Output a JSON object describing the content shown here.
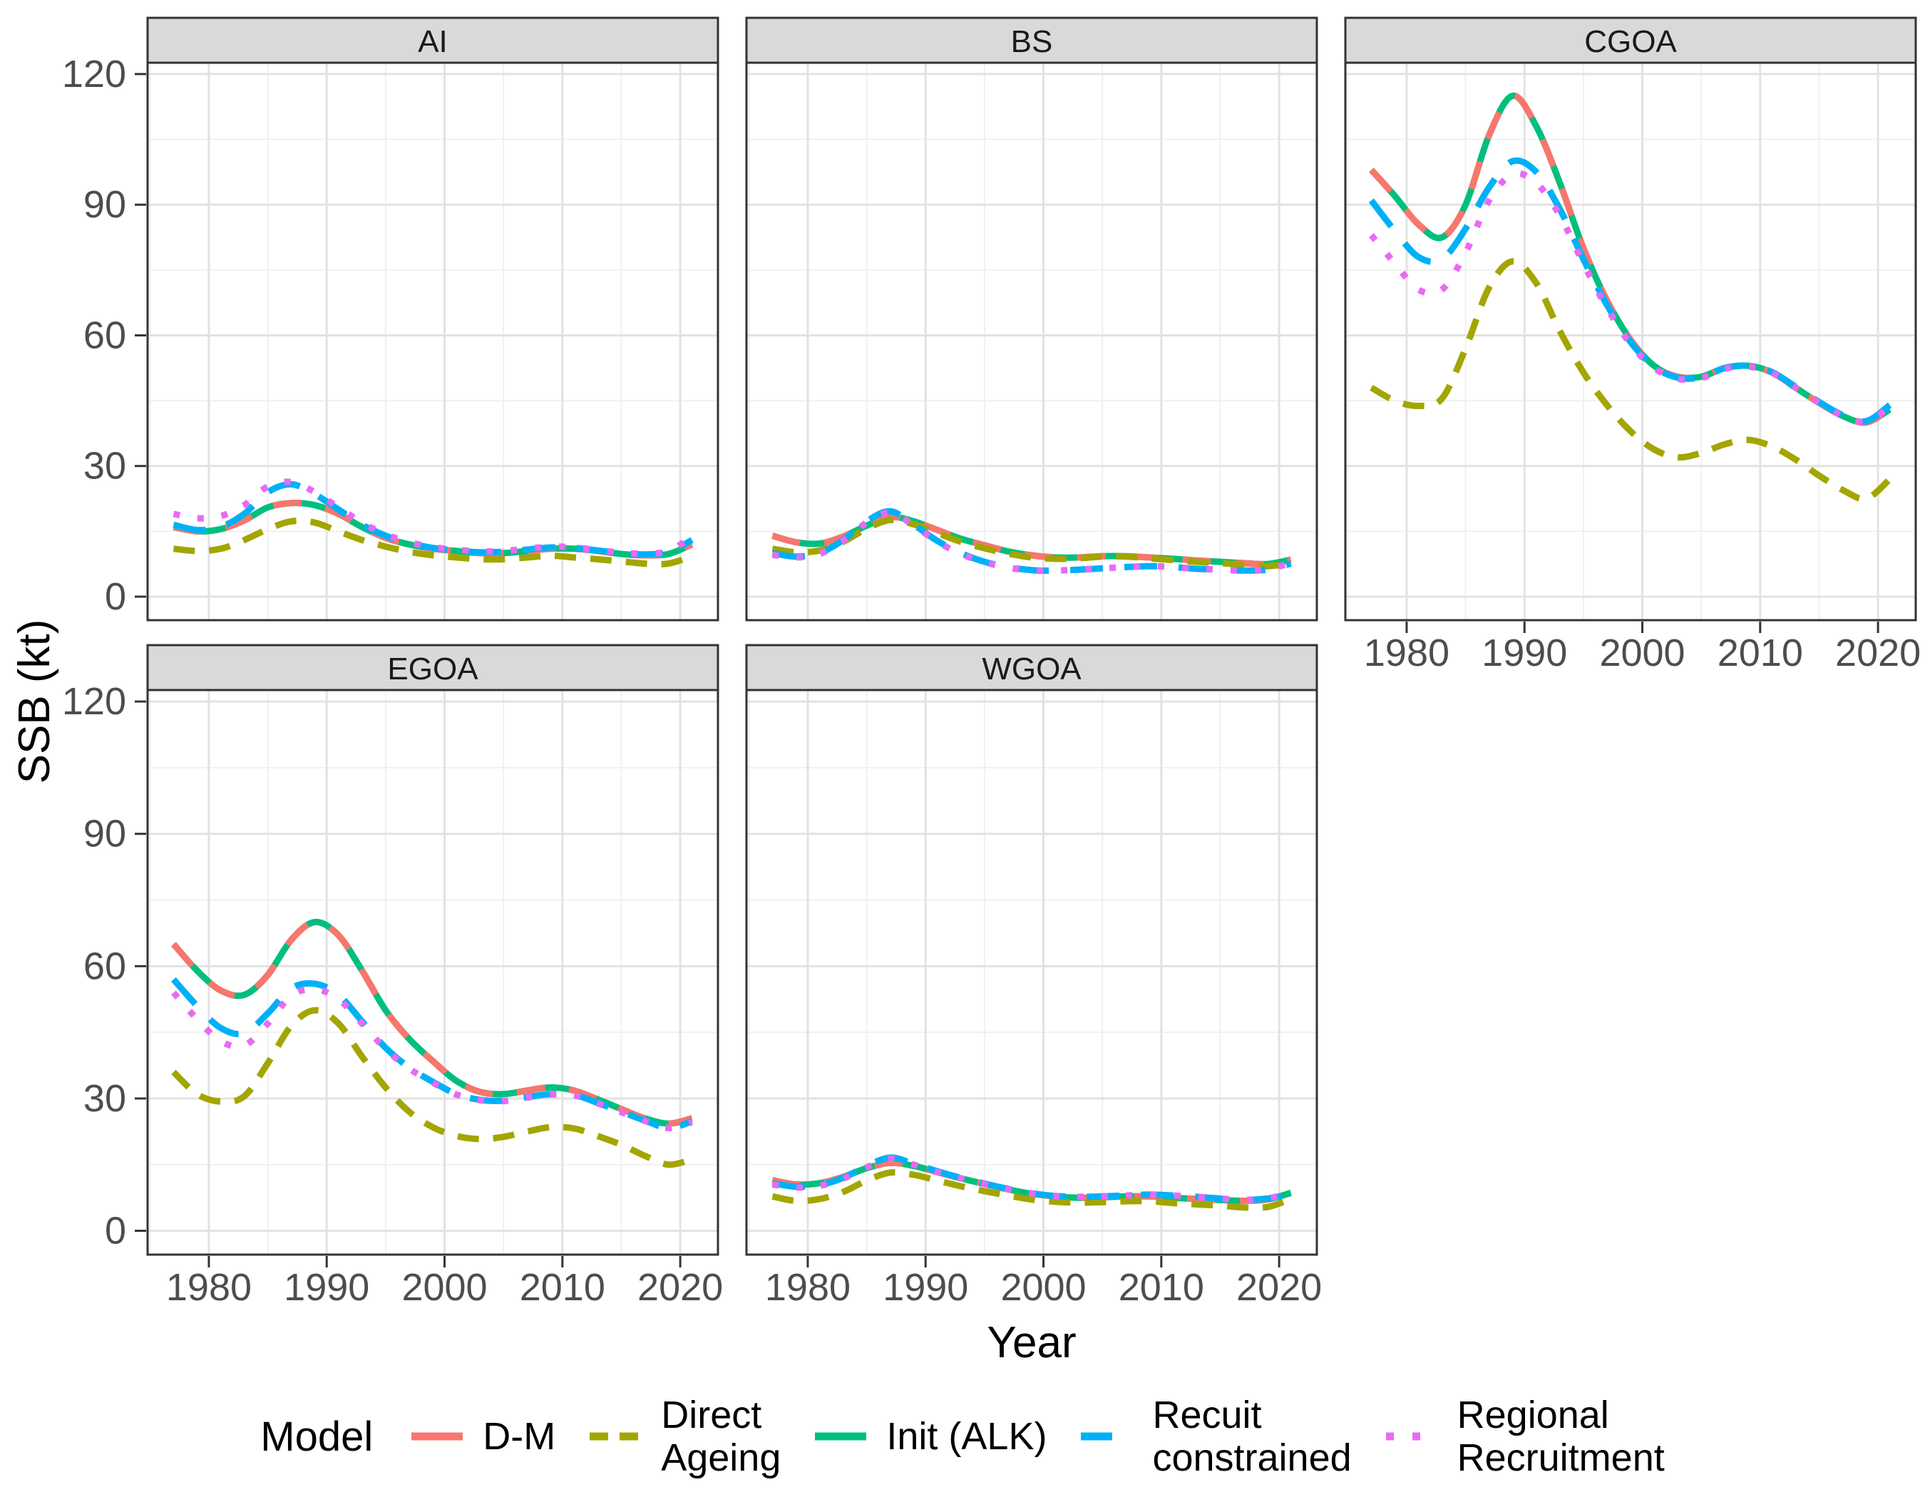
{
  "figure": {
    "y_axis_title": "SSB (kt)",
    "x_axis_title": "Year",
    "y_ticks": [
      "120",
      "90",
      "60",
      "30",
      "0"
    ],
    "x_ticks": [
      "1980",
      "1990",
      "2000",
      "2010",
      "2020"
    ]
  },
  "legend": {
    "title": "Model",
    "entries": [
      {
        "label": "D-M",
        "color": "#F8766D",
        "dash": "dm"
      },
      {
        "label": "Direct\nAgeing",
        "color": "#A3A500",
        "dash": "direct"
      },
      {
        "label": "Init (ALK)",
        "color": "#00BF7D",
        "dash": "solid"
      },
      {
        "label": "Recuit\nconstrained",
        "color": "#00B0F6",
        "dash": "longdash"
      },
      {
        "label": "Regional\nRecruitment",
        "color": "#E76BF3",
        "dash": "dotted"
      }
    ]
  },
  "chart_data": {
    "type": "line",
    "title": "",
    "xlabel": "Year",
    "ylabel": "SSB (kt)",
    "x_range": [
      1977,
      2021
    ],
    "ylim": [
      0,
      120
    ],
    "x_tick_values": [
      1980,
      1990,
      2000,
      2010,
      2020
    ],
    "y_tick_values": [
      0,
      30,
      60,
      90,
      120
    ],
    "grid": true,
    "legend_position": "bottom",
    "facet_names": [
      "AI",
      "BS",
      "CGOA",
      "EGOA",
      "WGOA"
    ],
    "years": [
      1977,
      1979,
      1981,
      1983,
      1985,
      1987,
      1989,
      1991,
      1993,
      1995,
      1997,
      1999,
      2001,
      2003,
      2005,
      2007,
      2009,
      2011,
      2013,
      2015,
      2017,
      2019,
      2021
    ],
    "facets": [
      {
        "name": "AI",
        "series": [
          {
            "name": "D-M",
            "values": [
              16,
              15,
              15.5,
              17.5,
              20.5,
              21.5,
              21,
              19,
              16,
              13.5,
              12,
              11,
              10.5,
              10,
              10,
              10.5,
              11,
              11,
              10.5,
              9.8,
              9.5,
              9.8,
              12
            ]
          },
          {
            "name": "Direct Ageing",
            "values": [
              11,
              10.5,
              11,
              13,
              15.5,
              17.3,
              17,
              15,
              13,
              11.5,
              10.3,
              9.5,
              9,
              8.6,
              8.6,
              9,
              9.4,
              9,
              8.6,
              8.1,
              7.6,
              7.6,
              9.3
            ]
          },
          {
            "name": "Init (ALK)",
            "values": [
              16,
              15,
              15.5,
              17.5,
              20.5,
              21.5,
              21,
              19,
              16,
              13.5,
              12,
              11,
              10.5,
              10,
              10,
              10.5,
              11,
              11,
              10.5,
              9.8,
              9.5,
              9.8,
              12
            ]
          },
          {
            "name": "Recuit constrained",
            "values": [
              16.5,
              15.3,
              16,
              19,
              24,
              25.8,
              23.5,
              20,
              16.5,
              14,
              12.3,
              11.2,
              10.6,
              10.2,
              10.3,
              10.8,
              11.3,
              11.2,
              10.6,
              10,
              9.7,
              10.2,
              13
            ]
          },
          {
            "name": "Regional Recruitment",
            "values": [
              19,
              18,
              18.5,
              21,
              25.3,
              26.3,
              24,
              20.5,
              17,
              14.3,
              12.5,
              11.4,
              10.8,
              10.4,
              10.5,
              11,
              11.5,
              11.3,
              10.7,
              10.1,
              9.9,
              10.5,
              13.8
            ]
          }
        ]
      },
      {
        "name": "BS",
        "series": [
          {
            "name": "D-M",
            "values": [
              14,
              12.5,
              12.2,
              13.8,
              16.3,
              18.3,
              17.3,
              15.3,
              13.3,
              11.8,
              10.4,
              9.5,
              9,
              9,
              9.3,
              9.3,
              9,
              8.7,
              8.3,
              8,
              7.7,
              7.5,
              8.5
            ]
          },
          {
            "name": "Direct Ageing",
            "values": [
              11,
              10.2,
              10.6,
              12.6,
              15.6,
              17.6,
              16.6,
              14.6,
              12.6,
              11.1,
              9.9,
              9,
              8.7,
              8.8,
              9.2,
              9.2,
              8.8,
              8.4,
              8,
              7.7,
              7.3,
              7,
              7.6
            ]
          },
          {
            "name": "Init (ALK)",
            "values": [
              14,
              12.5,
              12.2,
              13.8,
              16.3,
              18.3,
              17.3,
              15.3,
              13.3,
              11.8,
              10.4,
              9.5,
              9,
              9,
              9.3,
              9.3,
              9,
              8.7,
              8.3,
              8,
              7.7,
              7.5,
              8.5
            ]
          },
          {
            "name": "Recuit constrained",
            "values": [
              10,
              9.2,
              10,
              13,
              17.3,
              19.6,
              16.5,
              12.8,
              10,
              8,
              6.8,
              6.1,
              6,
              6.2,
              6.5,
              6.8,
              7,
              6.8,
              6.4,
              6.2,
              6,
              6.2,
              7.6
            ]
          },
          {
            "name": "Regional Recruitment",
            "values": [
              9.6,
              9,
              9.8,
              12.8,
              17,
              19.3,
              16.3,
              12.6,
              9.8,
              7.9,
              6.7,
              6,
              6,
              6.2,
              6.5,
              6.8,
              7,
              6.8,
              6.4,
              6.2,
              6,
              6.3,
              7.7
            ]
          }
        ]
      },
      {
        "name": "CGOA",
        "series": [
          {
            "name": "D-M",
            "values": [
              98,
              92,
              85.5,
              82.5,
              90,
              106,
              115,
              108,
              95,
              80,
              68,
              59,
              53,
              50.5,
              50.5,
              52.5,
              53,
              51.5,
              48,
              44.5,
              41.5,
              40,
              43
            ]
          },
          {
            "name": "Direct Ageing",
            "values": [
              48,
              45,
              43.8,
              45.5,
              57,
              71,
              77,
              72,
              61,
              51.5,
              44,
              38,
              33.8,
              32,
              33,
              35,
              36,
              34.5,
              31.5,
              27.8,
              24.5,
              22.5,
              27
            ]
          },
          {
            "name": "Init (ALK)",
            "values": [
              98,
              92,
              85.5,
              82.5,
              90,
              106,
              115,
              108,
              95,
              80,
              68,
              59,
              53,
              50.5,
              50.5,
              52.5,
              53,
              51.5,
              48,
              44.5,
              41.5,
              40,
              43
            ]
          },
          {
            "name": "Recuit constrained",
            "values": [
              91,
              84,
              78,
              77.5,
              84.5,
              94,
              100,
              97.5,
              89,
              77.5,
              67,
              58.5,
              52.8,
              50.3,
              50.4,
              52.5,
              53,
              51.6,
              48.2,
              44.7,
              41.7,
              40.3,
              44
            ]
          },
          {
            "name": "Regional Recruitment",
            "values": [
              83,
              76.5,
              70.5,
              70.5,
              79,
              91,
              97,
              95,
              87.5,
              76.5,
              66.3,
              58,
              52.5,
              50,
              50.2,
              52.3,
              52.8,
              51.4,
              48,
              44.5,
              41.5,
              40.2,
              43.5
            ]
          }
        ]
      },
      {
        "name": "EGOA",
        "series": [
          {
            "name": "D-M",
            "values": [
              65,
              59,
              54.5,
              53.5,
              58,
              66,
              70,
              67,
              59,
              50,
              43.5,
              38.5,
              34,
              31.5,
              31,
              31.8,
              32.5,
              31.8,
              29.8,
              27.6,
              25.5,
              24.3,
              25.5
            ]
          },
          {
            "name": "Direct Ageing",
            "values": [
              36,
              31,
              29.3,
              30.5,
              38,
              46.5,
              50,
              47,
              39.5,
              32.5,
              27,
              23.5,
              21.5,
              20.8,
              21.3,
              22.5,
              23.5,
              23.2,
              21.5,
              19.5,
              17,
              15,
              16.2
            ]
          },
          {
            "name": "Init (ALK)",
            "values": [
              65,
              59,
              54.5,
              53.5,
              58,
              66,
              70,
              67,
              59,
              50,
              43.5,
              38.5,
              34,
              31.5,
              31,
              31.8,
              32.5,
              31.8,
              29.8,
              27.6,
              25.5,
              24.3,
              25.5
            ]
          },
          {
            "name": "Recuit constrained",
            "values": [
              57,
              51,
              46,
              44.8,
              49.3,
              55,
              56,
              53.5,
              47.5,
              41.5,
              37,
              33.8,
              31,
              29.7,
              29.5,
              30.3,
              31,
              30.8,
              29,
              27,
              25,
              23.3,
              24.8
            ]
          },
          {
            "name": "Regional Recruitment",
            "values": [
              54,
              48,
              43,
              42,
              47,
              53.3,
              54.8,
              52.5,
              47,
              41.2,
              36.8,
              33.6,
              30.9,
              29.6,
              29.4,
              30.2,
              30.9,
              30.7,
              28.9,
              26.9,
              24.9,
              23.3,
              24.6
            ]
          }
        ]
      },
      {
        "name": "WGOA",
        "series": [
          {
            "name": "D-M",
            "values": [
              11.5,
              10.5,
              10.8,
              12.2,
              14.2,
              15.4,
              14.7,
              13.3,
              11.9,
              10.6,
              9.4,
              8.4,
              7.8,
              7.5,
              7.6,
              7.8,
              7.8,
              7.5,
              7.2,
              7,
              6.8,
              7.1,
              8.6
            ]
          },
          {
            "name": "Direct Ageing",
            "values": [
              7.8,
              6.8,
              7.2,
              8.8,
              11.4,
              13.2,
              12.7,
              11.4,
              10.1,
              9,
              8,
              7.1,
              6.6,
              6.4,
              6.5,
              6.7,
              6.7,
              6.3,
              6,
              5.7,
              5.3,
              5.4,
              7.2
            ]
          },
          {
            "name": "Init (ALK)",
            "values": [
              11.5,
              10.5,
              10.8,
              12.2,
              14.2,
              15.4,
              14.7,
              13.3,
              11.9,
              10.6,
              9.4,
              8.4,
              7.8,
              7.5,
              7.6,
              7.8,
              7.8,
              7.5,
              7.2,
              7,
              6.8,
              7.1,
              8.6
            ]
          },
          {
            "name": "Recuit constrained",
            "values": [
              10.8,
              10,
              10.4,
              12,
              14.7,
              16.6,
              15.2,
              13.5,
              12,
              10.7,
              9.5,
              8.5,
              7.9,
              7.7,
              7.8,
              8,
              8.2,
              8,
              7.7,
              7.3,
              7,
              7.3,
              8.2
            ]
          },
          {
            "name": "Regional Recruitment",
            "values": [
              10.5,
              9.8,
              10.2,
              11.8,
              14.4,
              16.3,
              15,
              13.3,
              11.9,
              10.6,
              9.4,
              8.5,
              7.9,
              7.7,
              7.8,
              8,
              8.2,
              8,
              7.7,
              7.3,
              7,
              7.4,
              8.4
            ]
          }
        ]
      }
    ]
  }
}
